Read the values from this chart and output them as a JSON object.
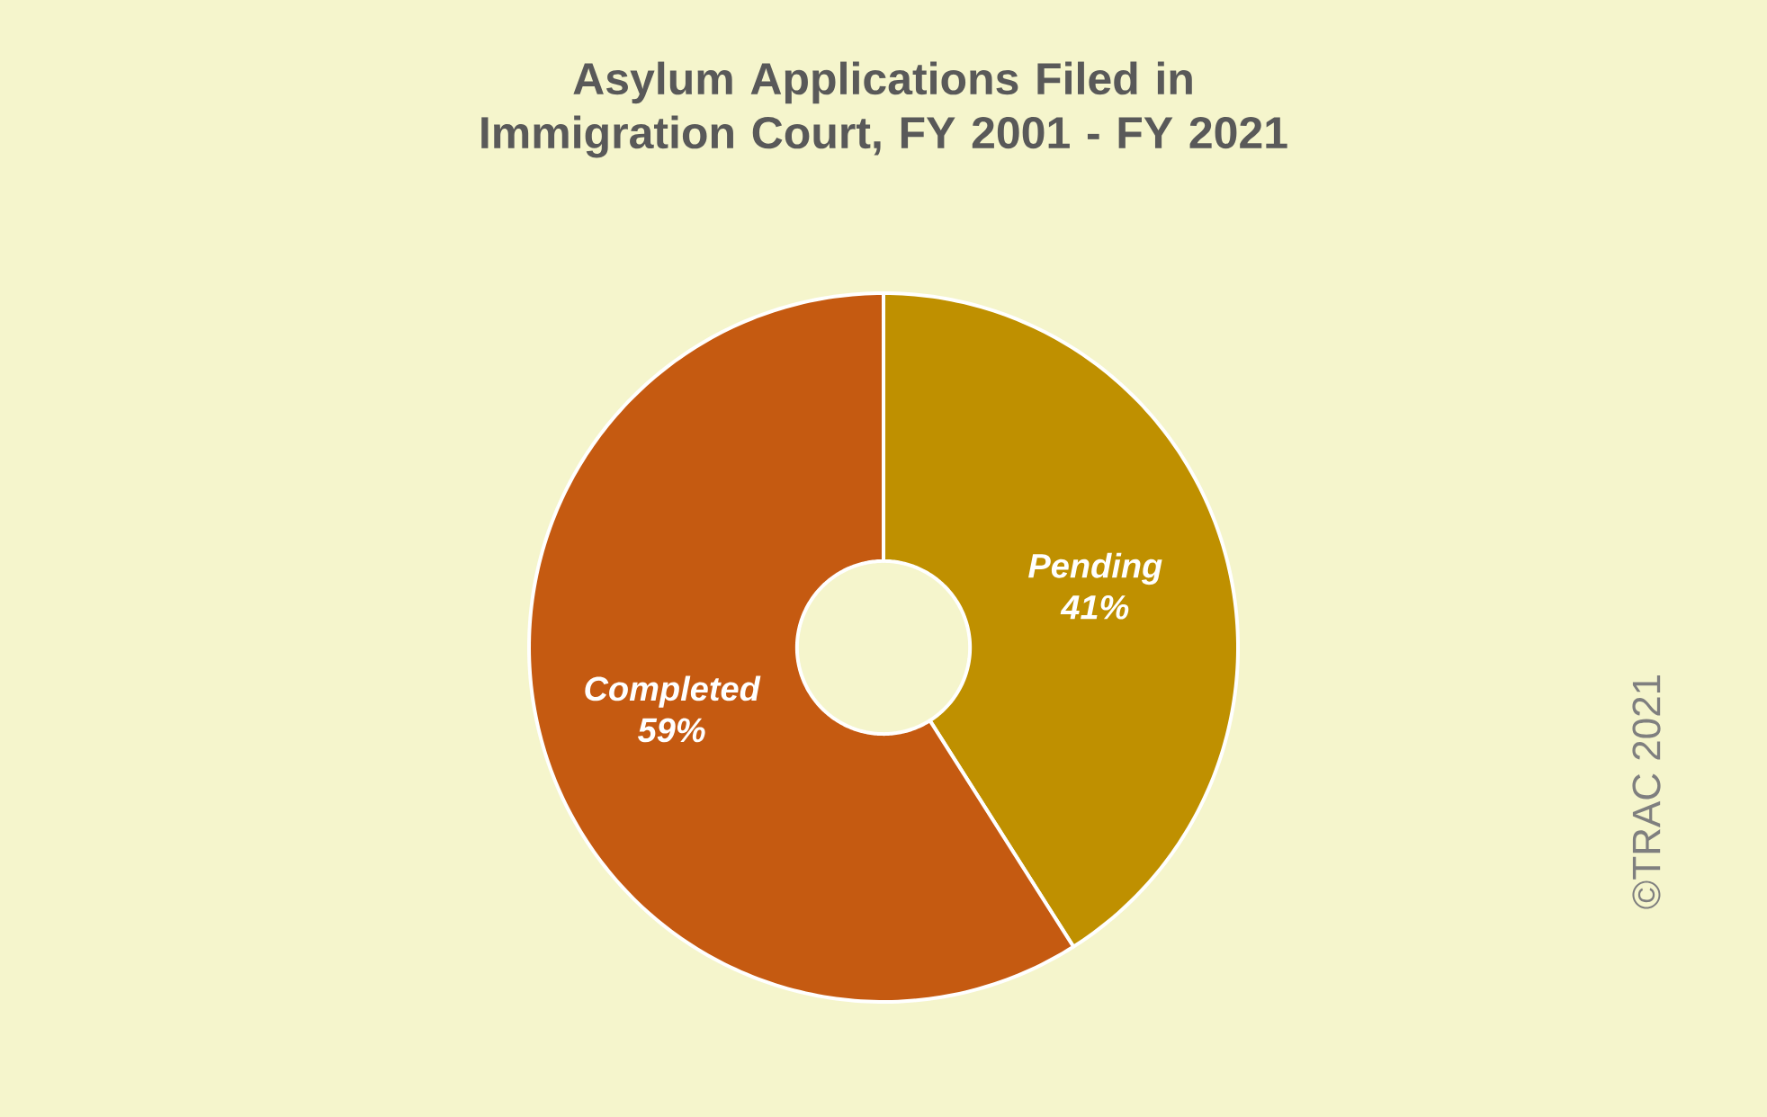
{
  "chart_data": {
    "type": "donut",
    "title": "Asylum Applications Filed in Immigration Court, FY 2001 - FY 2021",
    "categories": [
      "Pending",
      "Completed"
    ],
    "values": [
      41,
      59
    ],
    "colors": [
      "#bf9000",
      "#c55a11"
    ],
    "value_labels": [
      "41%",
      "59%"
    ],
    "annotations": [
      "©TRAC 2021"
    ]
  }
}
